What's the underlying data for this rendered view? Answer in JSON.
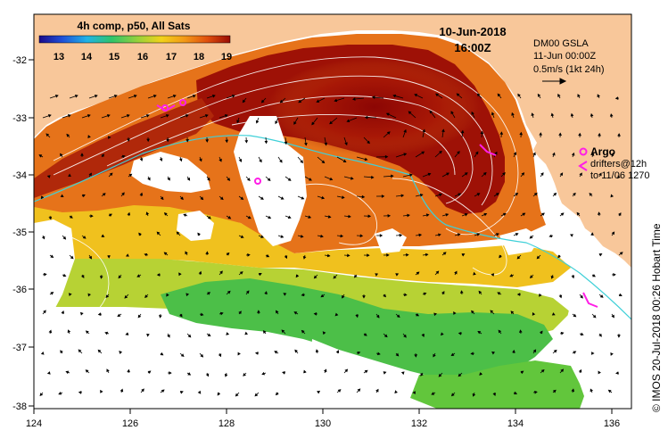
{
  "colorbar": {
    "title": "4h comp, p50, All Sats",
    "ticks": [
      "13",
      "14",
      "15",
      "16",
      "17",
      "18",
      "19"
    ],
    "stops": [
      "#1a0a8a",
      "#1f4fd8",
      "#21b3e6",
      "#2fc46a",
      "#9ad23a",
      "#f2d21a",
      "#f39a18",
      "#e0500e",
      "#9a0c05"
    ]
  },
  "time": {
    "date": "10-Jun-2018",
    "hour": "16:00Z"
  },
  "gsla": {
    "label": "DM00 GSLA",
    "time": "11-Jun 00:00Z",
    "scale": "0.5m/s (1kt 24h)"
  },
  "legend": {
    "argo": "Argo",
    "drifters": "drifters@12h",
    "drifters_to": "to 11/06 1270"
  },
  "credit": "© IMOS 20-Jul-2018 00:26 Hobart Time",
  "axes": {
    "x_ticks": [
      "124",
      "126",
      "128",
      "130",
      "132",
      "134",
      "136"
    ],
    "y_ticks": [
      "-32",
      "-33",
      "-34",
      "-35",
      "-36",
      "-37",
      "-38"
    ]
  },
  "colors": {
    "land": "#f8c79a",
    "sea_no_data": "#ffffff",
    "contours": "#ffffff",
    "bathymetry": "#3fd0d8",
    "argo": "#ff1ee6",
    "vectors": "#000000"
  }
}
